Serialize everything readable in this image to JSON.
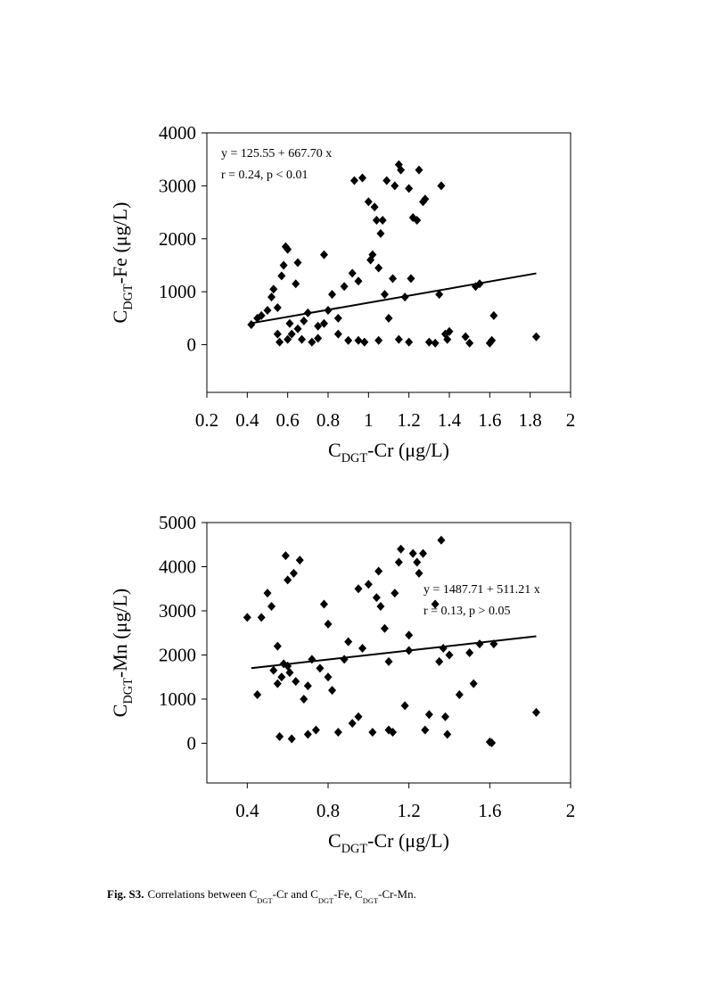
{
  "chart_data": [
    {
      "type": "scatter",
      "ylabel": {
        "parts": [
          {
            "text": "C"
          },
          {
            "text": "DGT",
            "sub": true
          },
          {
            "text": "-Fe (μg/L)"
          }
        ]
      },
      "xlabel": {
        "parts": [
          {
            "text": "C"
          },
          {
            "text": "DGT",
            "sub": true
          },
          {
            "text": "-Cr (μg/L)"
          }
        ]
      },
      "annotations": [
        "y = 125.55 + 667.70 x",
        "r = 0.24, p < 0.01"
      ],
      "xlim": [
        0.2,
        2.0
      ],
      "xticks": [
        0.2,
        0.4,
        0.6,
        0.8,
        1.0,
        1.2,
        1.4,
        1.6,
        1.8,
        2.0
      ],
      "ylim": [
        -900,
        4000
      ],
      "yticks": [
        0,
        1000,
        2000,
        3000,
        4000
      ],
      "color": "#000000",
      "x": [
        0.42,
        0.45,
        0.47,
        0.5,
        0.52,
        0.53,
        0.55,
        0.56,
        0.57,
        0.58,
        0.59,
        0.6,
        0.61,
        0.62,
        0.64,
        0.65,
        0.67,
        0.7,
        0.72,
        0.75,
        0.78,
        0.8,
        0.82,
        0.85,
        0.88,
        0.9,
        0.92,
        0.93,
        0.95,
        0.97,
        0.98,
        1.0,
        1.01,
        1.02,
        1.03,
        1.04,
        1.05,
        1.06,
        1.07,
        1.08,
        1.09,
        1.1,
        1.12,
        1.13,
        1.15,
        1.16,
        1.18,
        1.2,
        1.21,
        1.22,
        1.24,
        1.25,
        1.27,
        1.28,
        1.3,
        1.33,
        1.35,
        1.36,
        1.38,
        1.39,
        1.4,
        1.48,
        1.5,
        1.53,
        1.55,
        1.6,
        1.61,
        1.62,
        1.83,
        0.55,
        0.6,
        0.65,
        0.75,
        0.85,
        0.95,
        1.05,
        1.15,
        1.2,
        0.68,
        0.78
      ],
      "y": [
        380,
        500,
        550,
        650,
        900,
        1050,
        700,
        50,
        1300,
        1500,
        1850,
        1800,
        400,
        200,
        1150,
        1550,
        100,
        600,
        50,
        350,
        1700,
        650,
        950,
        200,
        1100,
        80,
        1350,
        3100,
        1200,
        3150,
        50,
        2700,
        1600,
        1700,
        2600,
        2350,
        1450,
        2100,
        2350,
        950,
        3100,
        500,
        1250,
        3000,
        3400,
        3300,
        900,
        2950,
        1250,
        2400,
        2350,
        3300,
        2700,
        2750,
        50,
        30,
        950,
        3000,
        200,
        100,
        250,
        150,
        30,
        1100,
        1150,
        30,
        80,
        550,
        150,
        200,
        100,
        300,
        120,
        500,
        80,
        80,
        100,
        50,
        450,
        400
      ],
      "trendline": {
        "x": [
          0.42,
          1.83
        ],
        "y": [
          406,
          1347
        ]
      }
    },
    {
      "type": "scatter",
      "ylabel": {
        "parts": [
          {
            "text": "C"
          },
          {
            "text": "DGT",
            "sub": true
          },
          {
            "text": "-Mn (μg/L)"
          }
        ]
      },
      "xlabel": {
        "parts": [
          {
            "text": "C"
          },
          {
            "text": "DGT",
            "sub": true
          },
          {
            "text": "-Cr (μg/L)"
          }
        ]
      },
      "annotations": [
        "y = 1487.71 + 511.21 x",
        "r = 0.13, p > 0.05"
      ],
      "xlim": [
        0.2,
        2.0
      ],
      "xticks": [
        0.4,
        0.8,
        1.2,
        1.6,
        2.0
      ],
      "ylim": [
        -900,
        5000
      ],
      "yticks": [
        0,
        1000,
        2000,
        3000,
        4000,
        5000
      ],
      "color": "#000000",
      "x": [
        0.4,
        0.45,
        0.47,
        0.5,
        0.52,
        0.53,
        0.55,
        0.56,
        0.57,
        0.58,
        0.59,
        0.6,
        0.61,
        0.62,
        0.63,
        0.64,
        0.66,
        0.68,
        0.7,
        0.72,
        0.74,
        0.76,
        0.78,
        0.8,
        0.82,
        0.85,
        0.88,
        0.9,
        0.92,
        0.95,
        0.97,
        1.0,
        1.02,
        1.04,
        1.05,
        1.06,
        1.08,
        1.1,
        1.12,
        1.13,
        1.15,
        1.16,
        1.18,
        1.2,
        1.22,
        1.24,
        1.25,
        1.27,
        1.28,
        1.3,
        1.33,
        1.35,
        1.36,
        1.37,
        1.38,
        1.39,
        1.4,
        1.45,
        1.5,
        1.52,
        1.55,
        1.6,
        1.61,
        1.62,
        1.83,
        0.55,
        0.6,
        0.7,
        0.8,
        0.95,
        1.1,
        1.2
      ],
      "y": [
        2850,
        1100,
        2850,
        3400,
        3100,
        1650,
        2200,
        150,
        1500,
        1800,
        4250,
        3700,
        1600,
        100,
        3850,
        1400,
        4150,
        1000,
        200,
        1900,
        300,
        1700,
        3150,
        2700,
        1200,
        250,
        1900,
        2300,
        450,
        3500,
        2150,
        3600,
        250,
        3300,
        3900,
        3100,
        2600,
        1850,
        250,
        3400,
        4100,
        4400,
        850,
        2100,
        4300,
        4100,
        3850,
        4300,
        300,
        650,
        3150,
        1850,
        4600,
        2150,
        600,
        200,
        2000,
        1100,
        2050,
        1350,
        2250,
        30,
        10,
        2250,
        700,
        1350,
        1750,
        1300,
        1500,
        600,
        300,
        2450
      ],
      "trendline": {
        "x": [
          0.42,
          1.83
        ],
        "y": [
          1702,
          2423
        ]
      }
    }
  ],
  "caption": {
    "label": "Fig. S3.",
    "parts": [
      {
        "text": "Correlations between C"
      },
      {
        "text": "DGT",
        "sub": true
      },
      {
        "text": "-Cr and C"
      },
      {
        "text": "DGT",
        "sub": true
      },
      {
        "text": "-Fe, C"
      },
      {
        "text": "DGT",
        "sub": true
      },
      {
        "text": "-Cr-Mn."
      }
    ]
  }
}
